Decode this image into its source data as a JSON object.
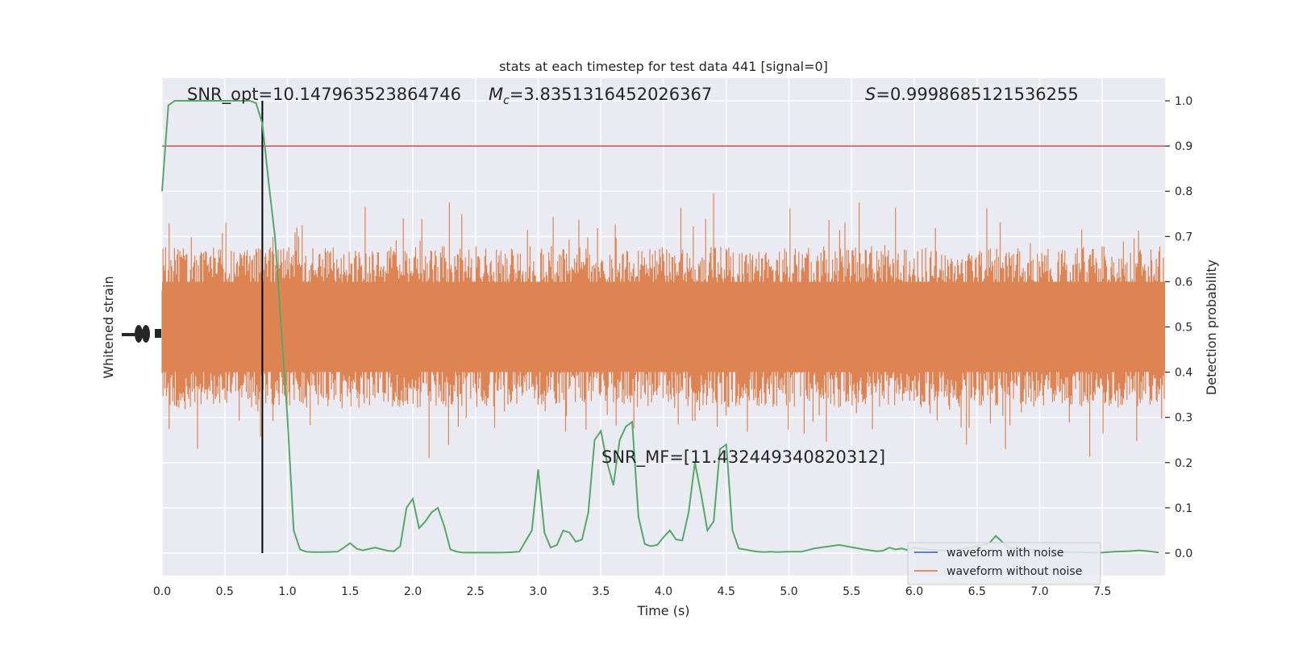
{
  "chart_data": {
    "type": "line",
    "title": "stats at each timestep for test data 441 [signal=0]",
    "xlabel": "Time (s)",
    "ylabel_left": "Whitened strain",
    "ylabel_right": "Detection probability",
    "xlim": [
      0.0,
      8.0
    ],
    "ylim_right": [
      -0.05,
      1.05
    ],
    "x_ticks": [
      "0.0",
      "0.5",
      "1.0",
      "1.5",
      "2.0",
      "2.5",
      "3.0",
      "3.5",
      "4.0",
      "4.5",
      "5.0",
      "5.5",
      "6.0",
      "6.5",
      "7.0",
      "7.5"
    ],
    "y_right_ticks": [
      "0.0",
      "0.1",
      "0.2",
      "0.3",
      "0.4",
      "0.5",
      "0.6",
      "0.7",
      "0.8",
      "0.9",
      "1.0"
    ],
    "grid": true,
    "legend_position": "lower-right",
    "legend": [
      {
        "label": "waveform with noise",
        "color": "#4c72b0"
      },
      {
        "label": "waveform without noise",
        "color": "#dd8452"
      }
    ],
    "annotations": {
      "snr_opt": "SNR_opt=10.147963523864746",
      "mc_prefix": "M",
      "mc_sub": "c",
      "mc_value": "=3.8351316452026367",
      "s_prefix": "S",
      "s_value": "=0.9998685121536255",
      "snr_mf": "SNR_MF=[11.432449340820312]"
    },
    "threshold": {
      "value": 0.9,
      "color": "#c44e52"
    },
    "marker_time": 0.8,
    "colors": {
      "noise_band": "#dd8452",
      "probability": "#55a868",
      "marker": "#000000",
      "background": "#eaeaf2",
      "grid": "#ffffff"
    },
    "series": [
      {
        "name": "Detection probability",
        "x": [
          0.0,
          0.05,
          0.1,
          0.15,
          0.2,
          0.3,
          0.4,
          0.5,
          0.6,
          0.7,
          0.75,
          0.8,
          0.85,
          0.9,
          0.95,
          1.0,
          1.05,
          1.1,
          1.15,
          1.2,
          1.3,
          1.4,
          1.45,
          1.5,
          1.55,
          1.6,
          1.7,
          1.8,
          1.85,
          1.9,
          1.95,
          2.0,
          2.05,
          2.1,
          2.15,
          2.2,
          2.25,
          2.3,
          2.35,
          2.4,
          2.5,
          2.6,
          2.7,
          2.8,
          2.85,
          2.95,
          3.0,
          3.05,
          3.1,
          3.15,
          3.2,
          3.25,
          3.3,
          3.35,
          3.4,
          3.45,
          3.5,
          3.55,
          3.6,
          3.65,
          3.7,
          3.75,
          3.8,
          3.85,
          3.9,
          3.95,
          4.0,
          4.05,
          4.1,
          4.15,
          4.2,
          4.25,
          4.3,
          4.35,
          4.4,
          4.45,
          4.5,
          4.55,
          4.6,
          4.65,
          4.7,
          4.75,
          4.8,
          4.85,
          4.9,
          5.0,
          5.1,
          5.2,
          5.4,
          5.6,
          5.7,
          5.75,
          5.8,
          5.85,
          5.9,
          5.95,
          6.0,
          6.1,
          6.2,
          6.3,
          6.4,
          6.5,
          6.6,
          6.65,
          6.7,
          6.75,
          6.8,
          6.9,
          7.0,
          7.1,
          7.2,
          7.3,
          7.4,
          7.5,
          7.6,
          7.7,
          7.8,
          7.9,
          7.95
        ],
        "values": [
          0.8,
          0.99,
          1.0,
          1.0,
          1.0,
          1.0,
          1.0,
          1.0,
          1.0,
          1.0,
          0.995,
          0.95,
          0.82,
          0.7,
          0.5,
          0.3,
          0.05,
          0.008,
          0.003,
          0.002,
          0.002,
          0.003,
          0.012,
          0.022,
          0.01,
          0.006,
          0.012,
          0.005,
          0.004,
          0.015,
          0.1,
          0.12,
          0.055,
          0.07,
          0.09,
          0.1,
          0.06,
          0.008,
          0.003,
          0.001,
          0.001,
          0.001,
          0.001,
          0.002,
          0.003,
          0.05,
          0.185,
          0.045,
          0.012,
          0.018,
          0.05,
          0.045,
          0.025,
          0.03,
          0.09,
          0.25,
          0.27,
          0.2,
          0.15,
          0.25,
          0.28,
          0.29,
          0.08,
          0.02,
          0.015,
          0.018,
          0.035,
          0.05,
          0.03,
          0.028,
          0.09,
          0.2,
          0.13,
          0.05,
          0.07,
          0.23,
          0.24,
          0.05,
          0.01,
          0.008,
          0.005,
          0.003,
          0.002,
          0.003,
          0.002,
          0.003,
          0.003,
          0.01,
          0.018,
          0.008,
          0.004,
          0.005,
          0.012,
          0.008,
          0.01,
          0.006,
          0.012,
          0.008,
          0.006,
          0.005,
          0.01,
          0.015,
          0.022,
          0.038,
          0.025,
          0.012,
          0.01,
          0.008,
          0.006,
          0.004,
          0.002,
          0.002,
          0.001,
          0.001,
          0.003,
          0.004,
          0.006,
          0.003,
          0.001
        ]
      }
    ]
  }
}
